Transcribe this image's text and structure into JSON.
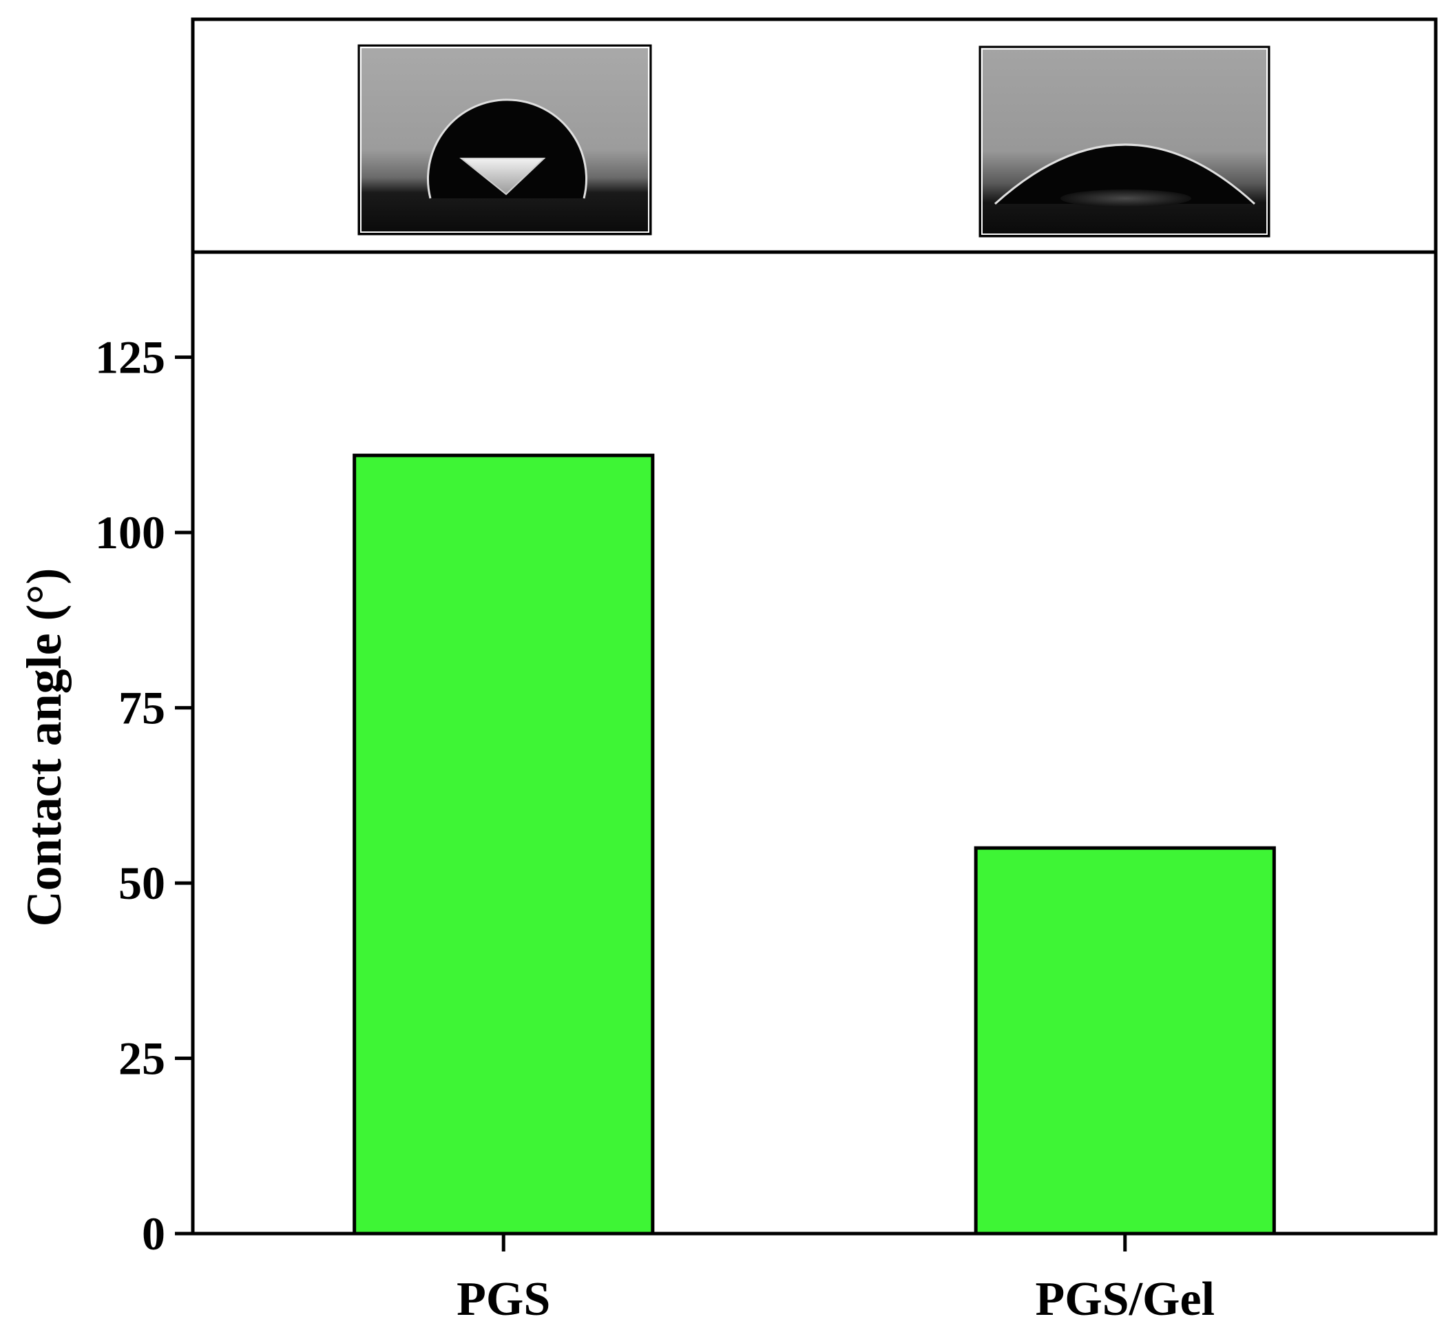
{
  "chart_data": {
    "type": "bar",
    "categories": [
      "PGS",
      "PGS/Gel"
    ],
    "values": [
      111,
      55
    ],
    "title": "",
    "xlabel": "",
    "ylabel": "Contact angle (°)",
    "ylim": [
      0,
      140
    ],
    "yticks": [
      0,
      25,
      50,
      75,
      100,
      125
    ],
    "grid": false,
    "bar_color": "#3ef535",
    "inset_images": [
      "water-droplet-on-pgs",
      "water-droplet-on-pgs-gel"
    ]
  }
}
